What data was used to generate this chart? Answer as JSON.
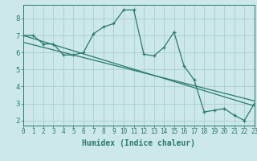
{
  "line1_x": [
    0,
    1,
    2,
    3,
    4,
    5,
    6,
    7,
    8,
    9,
    10,
    11,
    12,
    13,
    14,
    15,
    16,
    17,
    18,
    19,
    20,
    21,
    22,
    23
  ],
  "line1_y": [
    7.0,
    7.0,
    6.5,
    6.5,
    5.85,
    5.85,
    6.0,
    7.1,
    7.5,
    7.7,
    8.5,
    8.5,
    5.9,
    5.8,
    6.3,
    7.2,
    5.2,
    4.4,
    2.5,
    2.6,
    2.7,
    2.3,
    2.0,
    3.0
  ],
  "line2_x": [
    0,
    23
  ],
  "line2_y": [
    7.0,
    2.85
  ],
  "line3_x": [
    0,
    23
  ],
  "line3_y": [
    6.6,
    3.15
  ],
  "line_color": "#2a7a6e",
  "bg_color": "#cce8e8",
  "grid_color": "#aacece",
  "xlabel": "Humidex (Indice chaleur)",
  "xlim": [
    0,
    23
  ],
  "ylim": [
    1.7,
    8.8
  ],
  "yticks": [
    2,
    3,
    4,
    5,
    6,
    7,
    8
  ],
  "xticks": [
    0,
    1,
    2,
    3,
    4,
    5,
    6,
    7,
    8,
    9,
    10,
    11,
    12,
    13,
    14,
    15,
    16,
    17,
    18,
    19,
    20,
    21,
    22,
    23
  ],
  "xlabel_fontsize": 7,
  "tick_fontsize": 5.5,
  "ytick_fontsize": 6.5
}
